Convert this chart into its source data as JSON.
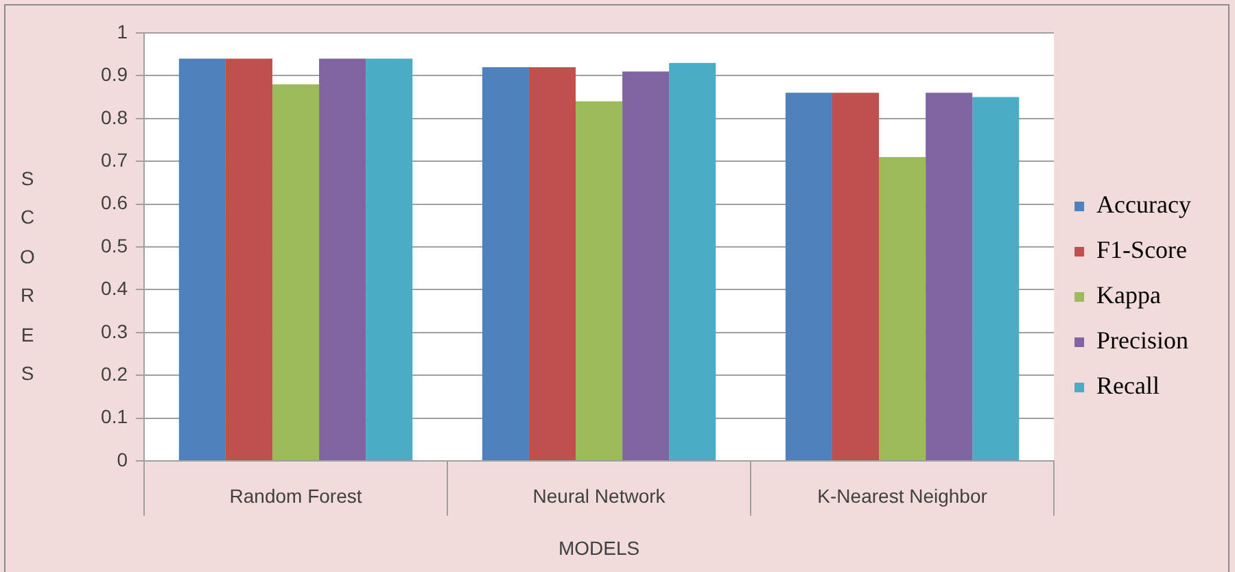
{
  "chart_data": {
    "type": "bar",
    "xlabel": "MODELS",
    "ylabel": "SCORES",
    "categories": [
      "Random Forest",
      "Neural Network",
      "K-Nearest Neighbor"
    ],
    "series": [
      {
        "name": "Accuracy",
        "color": "#4f81bd",
        "values": [
          0.94,
          0.92,
          0.86
        ]
      },
      {
        "name": "F1-Score",
        "color": "#c0504d",
        "values": [
          0.94,
          0.92,
          0.86
        ]
      },
      {
        "name": "Kappa",
        "color": "#9bbb59",
        "values": [
          0.88,
          0.84,
          0.71
        ]
      },
      {
        "name": "Precision",
        "color": "#8064a2",
        "values": [
          0.94,
          0.91,
          0.86
        ]
      },
      {
        "name": "Recall",
        "color": "#4bacc6",
        "values": [
          0.94,
          0.93,
          0.85
        ]
      }
    ],
    "ylim": [
      0,
      1
    ],
    "yticks": [
      0,
      0.1,
      0.2,
      0.3,
      0.4,
      0.5,
      0.6,
      0.7,
      0.8,
      0.9,
      1
    ],
    "grid": "y",
    "legend": "right"
  }
}
